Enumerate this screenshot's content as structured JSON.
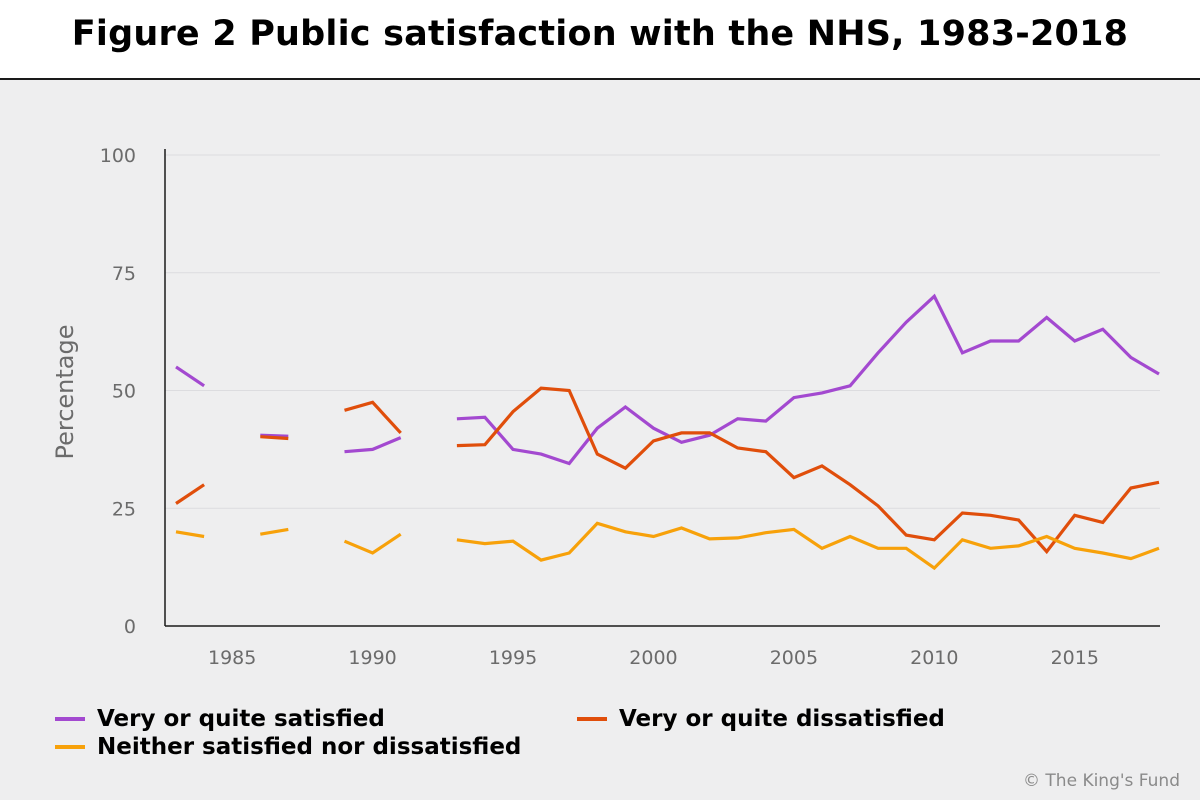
{
  "title": "Figure 2 Public satisfaction with the NHS, 1983-2018",
  "credit": "© The King's Fund",
  "chart_data": {
    "type": "line",
    "title": "Figure 2 Public satisfaction with the NHS, 1983-2018",
    "xlabel": "",
    "ylabel": "Percentage",
    "xlim": [
      1983,
      2018
    ],
    "ylim": [
      0,
      100
    ],
    "yticks": [
      0,
      25,
      50,
      75,
      100
    ],
    "xticks": [
      1985,
      1990,
      1995,
      2000,
      2005,
      2010,
      2015
    ],
    "grid": "horizontal",
    "legend_position": "bottom",
    "x": [
      1983,
      1984,
      1985,
      1986,
      1987,
      1988,
      1989,
      1990,
      1991,
      1992,
      1993,
      1994,
      1995,
      1996,
      1997,
      1998,
      1999,
      2000,
      2001,
      2002,
      2003,
      2004,
      2005,
      2006,
      2007,
      2008,
      2009,
      2010,
      2011,
      2012,
      2013,
      2014,
      2015,
      2016,
      2017,
      2018
    ],
    "series": [
      {
        "name": "Very or quite satisfied",
        "color": "#a349d0",
        "values": [
          55,
          51,
          null,
          40.5,
          40.3,
          null,
          37,
          37.5,
          40,
          null,
          44,
          44.3,
          37.5,
          36.5,
          34.5,
          42,
          46.5,
          42,
          39,
          40.5,
          44,
          43.5,
          48.5,
          49.5,
          51,
          58,
          64.5,
          70,
          58,
          60.5,
          60.5,
          65.5,
          60.5,
          63,
          57,
          53.5
        ]
      },
      {
        "name": "Very or quite dissatisfied",
        "color": "#e04e0b",
        "values": [
          26,
          30,
          null,
          40.2,
          39.8,
          null,
          45.8,
          47.5,
          41,
          null,
          38.3,
          38.5,
          45.5,
          50.5,
          50,
          36.5,
          33.5,
          39.3,
          41,
          41,
          37.8,
          37,
          31.5,
          34,
          30,
          25.5,
          19.3,
          18.3,
          24,
          23.5,
          22.5,
          15.8,
          23.5,
          22,
          29.3,
          30.5
        ]
      },
      {
        "name": "Neither satisfied nor dissatisfied",
        "color": "#f7a10a",
        "values": [
          20,
          19,
          null,
          19.5,
          20.5,
          null,
          18,
          15.5,
          19.5,
          null,
          18.3,
          17.5,
          18,
          14,
          15.5,
          21.8,
          20,
          19,
          20.8,
          18.5,
          18.7,
          19.8,
          20.5,
          16.5,
          19,
          16.5,
          16.5,
          12.3,
          18.3,
          16.5,
          17,
          19,
          16.5,
          15.5,
          14.3,
          16.5
        ]
      }
    ]
  }
}
